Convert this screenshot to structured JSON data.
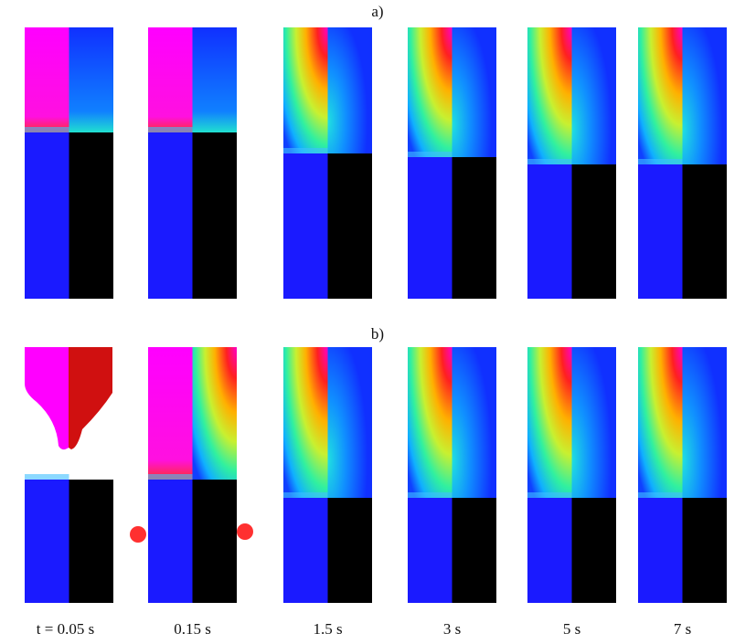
{
  "panels": [
    {
      "label": "a)"
    },
    {
      "label": "b)"
    }
  ],
  "time_labels": [
    "t = 0.05 s",
    "0.15 s",
    "1.5 s",
    "3 s",
    "5 s",
    "7 s"
  ]
}
